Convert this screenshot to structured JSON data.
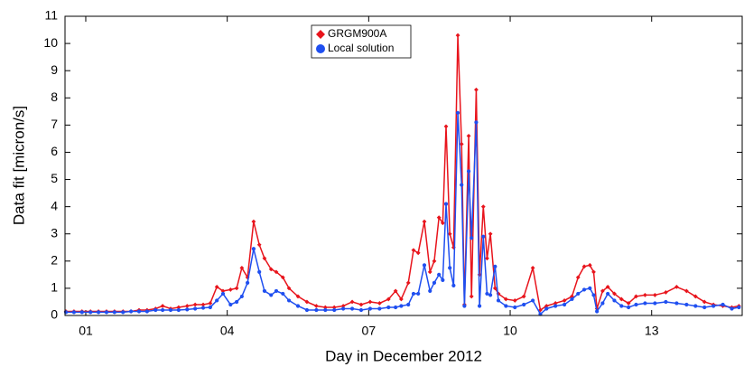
{
  "chart_data": {
    "type": "line",
    "x_label": "Day in December 2012",
    "y_label": "Data fit [micron/s]",
    "xlim": [
      0.56,
      14.92
    ],
    "ylim": [
      0,
      11
    ],
    "xticks": [
      {
        "value": 1,
        "label": "01"
      },
      {
        "value": 4,
        "label": "04"
      },
      {
        "value": 7,
        "label": "07"
      },
      {
        "value": 10,
        "label": "10"
      },
      {
        "value": 13,
        "label": "13"
      }
    ],
    "yticks": [
      0,
      1,
      2,
      3,
      4,
      5,
      6,
      7,
      8,
      9,
      10,
      11
    ],
    "grid": false,
    "legend": "top-center",
    "x": [
      0.58,
      0.75,
      0.92,
      1.1,
      1.27,
      1.44,
      1.61,
      1.79,
      1.96,
      2.13,
      2.3,
      2.48,
      2.63,
      2.8,
      2.97,
      3.15,
      3.32,
      3.49,
      3.64,
      3.78,
      3.91,
      4.07,
      4.2,
      4.31,
      4.43,
      4.56,
      4.68,
      4.79,
      4.93,
      5.04,
      5.18,
      5.31,
      5.5,
      5.69,
      5.89,
      6.08,
      6.27,
      6.46,
      6.65,
      6.84,
      7.03,
      7.23,
      7.42,
      7.57,
      7.69,
      7.84,
      7.95,
      8.05,
      8.18,
      8.3,
      8.39,
      8.49,
      8.57,
      8.64,
      8.72,
      8.8,
      8.89,
      8.97,
      9.03,
      9.12,
      9.18,
      9.28,
      9.35,
      9.43,
      9.51,
      9.58,
      9.68,
      9.75,
      9.91,
      10.1,
      10.29,
      10.48,
      10.64,
      10.77,
      10.96,
      11.15,
      11.31,
      11.44,
      11.57,
      11.69,
      11.77,
      11.84,
      11.96,
      12.07,
      12.21,
      12.36,
      12.51,
      12.67,
      12.86,
      13.07,
      13.3,
      13.53,
      13.74,
      13.93,
      14.12,
      14.31,
      14.51,
      14.7,
      14.85
    ],
    "series": [
      {
        "name": "GRGM900A",
        "color": "#e8141c",
        "marker": "diamond",
        "values": [
          0.15,
          0.15,
          0.15,
          0.15,
          0.15,
          0.15,
          0.15,
          0.15,
          0.15,
          0.2,
          0.2,
          0.25,
          0.35,
          0.25,
          0.3,
          0.35,
          0.4,
          0.4,
          0.45,
          1.05,
          0.9,
          0.95,
          1.0,
          1.75,
          1.4,
          3.45,
          2.6,
          2.1,
          1.7,
          1.6,
          1.4,
          1.0,
          0.7,
          0.5,
          0.35,
          0.3,
          0.3,
          0.35,
          0.5,
          0.4,
          0.5,
          0.45,
          0.6,
          0.9,
          0.6,
          1.2,
          2.4,
          2.3,
          3.45,
          1.6,
          2.0,
          3.6,
          3.4,
          6.95,
          3.0,
          2.5,
          10.3,
          6.3,
          0.4,
          6.6,
          0.7,
          8.3,
          1.5,
          4.0,
          2.1,
          3.0,
          1.0,
          0.8,
          0.6,
          0.55,
          0.7,
          1.75,
          0.2,
          0.35,
          0.45,
          0.55,
          0.7,
          1.4,
          1.8,
          1.85,
          1.6,
          0.25,
          0.9,
          1.05,
          0.8,
          0.6,
          0.45,
          0.7,
          0.75,
          0.75,
          0.85,
          1.05,
          0.9,
          0.7,
          0.5,
          0.4,
          0.35,
          0.3,
          0.35
        ]
      },
      {
        "name": "Local solution",
        "color": "#1f4ff0",
        "marker": "circle",
        "values": [
          0.12,
          0.12,
          0.12,
          0.12,
          0.12,
          0.12,
          0.12,
          0.12,
          0.15,
          0.15,
          0.15,
          0.2,
          0.2,
          0.2,
          0.2,
          0.22,
          0.25,
          0.28,
          0.3,
          0.55,
          0.8,
          0.4,
          0.5,
          0.7,
          1.2,
          2.45,
          1.6,
          0.9,
          0.75,
          0.9,
          0.8,
          0.55,
          0.35,
          0.2,
          0.2,
          0.2,
          0.2,
          0.25,
          0.25,
          0.2,
          0.25,
          0.25,
          0.3,
          0.3,
          0.35,
          0.4,
          0.8,
          0.8,
          1.85,
          0.9,
          1.2,
          1.5,
          1.3,
          4.1,
          1.75,
          1.1,
          7.45,
          4.8,
          0.35,
          5.3,
          2.85,
          7.1,
          0.35,
          2.9,
          0.8,
          0.75,
          1.8,
          0.55,
          0.35,
          0.3,
          0.4,
          0.55,
          0.05,
          0.25,
          0.35,
          0.4,
          0.6,
          0.8,
          0.95,
          1.0,
          0.75,
          0.15,
          0.45,
          0.8,
          0.55,
          0.35,
          0.3,
          0.4,
          0.45,
          0.45,
          0.5,
          0.45,
          0.4,
          0.35,
          0.3,
          0.35,
          0.4,
          0.25,
          0.3
        ]
      }
    ]
  }
}
